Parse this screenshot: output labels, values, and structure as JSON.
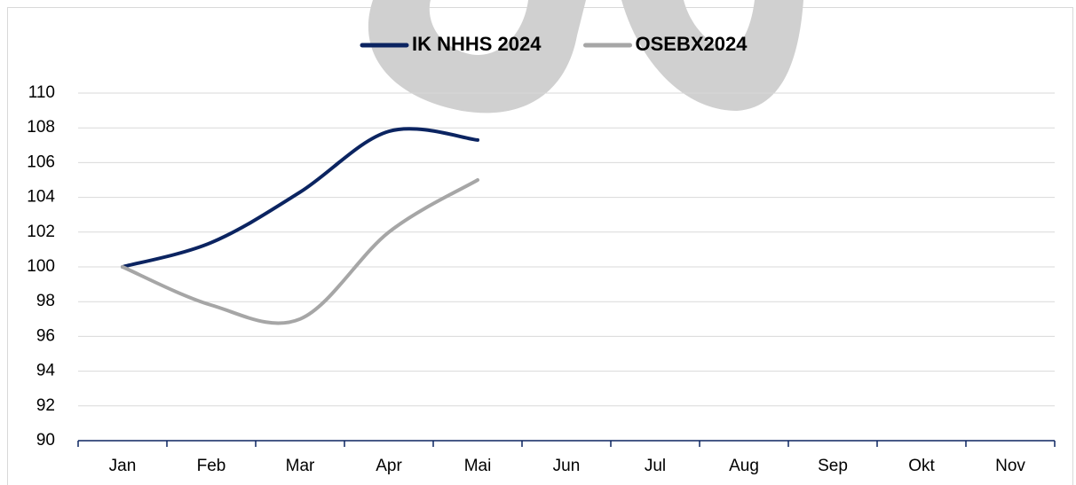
{
  "chart_data": {
    "type": "line",
    "categories": [
      "Jan",
      "Feb",
      "Mar",
      "Apr",
      "Mai",
      "Jun",
      "Jul",
      "Aug",
      "Sep",
      "Okt",
      "Nov"
    ],
    "series": [
      {
        "name": "IK NHHS 2024",
        "color": "#0b2461",
        "values": [
          100,
          101.4,
          104.3,
          107.8,
          107.3,
          null,
          null,
          null,
          null,
          null,
          null
        ]
      },
      {
        "name": "OSEBX2024",
        "color": "#a6a6a6",
        "values": [
          100,
          97.8,
          97.0,
          102.0,
          105.0,
          null,
          null,
          null,
          null,
          null,
          null
        ]
      }
    ],
    "ylim": [
      90,
      110
    ],
    "yticks": [
      90,
      92,
      94,
      96,
      98,
      100,
      102,
      104,
      106,
      108,
      110
    ],
    "grid": true,
    "legend": "top",
    "smooth": true
  }
}
